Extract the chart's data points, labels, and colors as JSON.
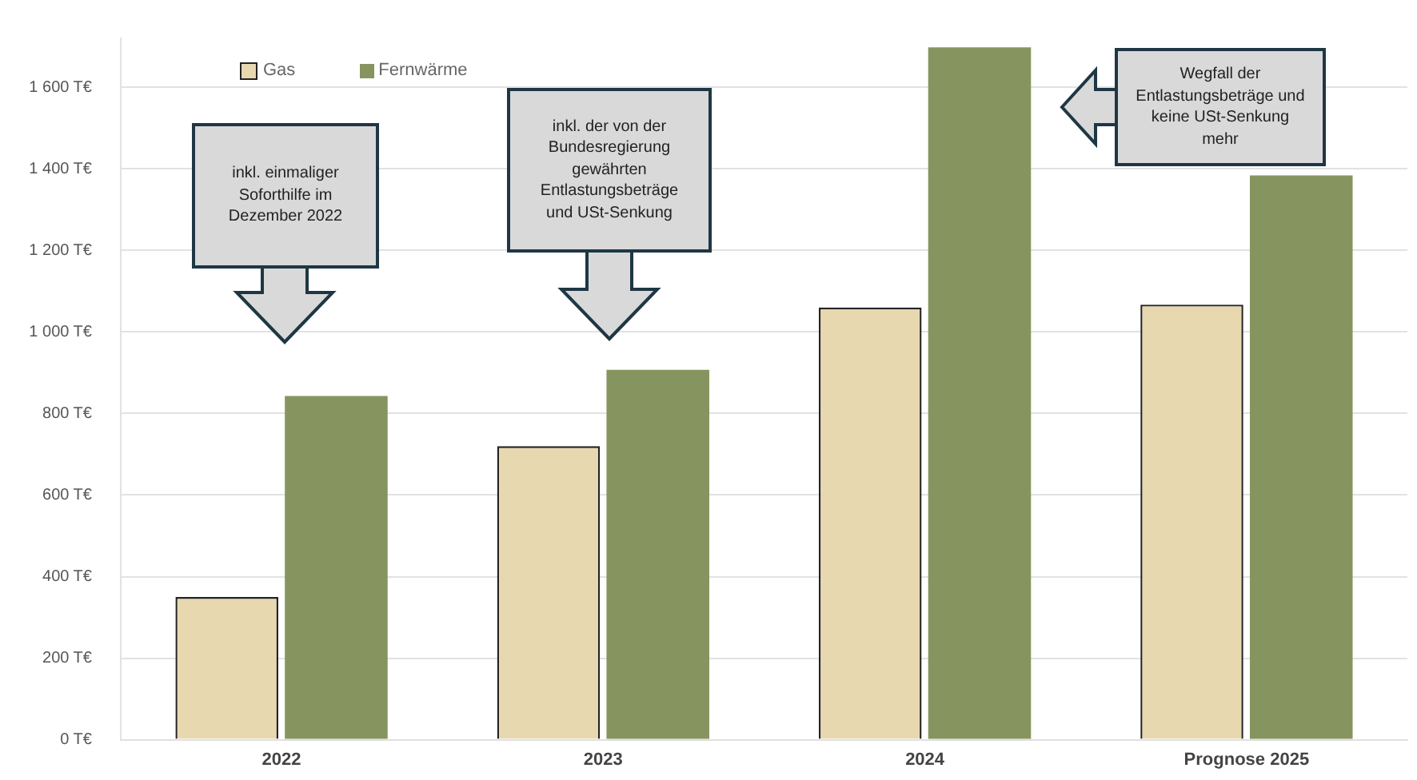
{
  "chart_data": {
    "type": "bar",
    "categories": [
      "2022",
      "2023",
      "2024",
      "Prognose 2025"
    ],
    "series": [
      {
        "name": "Gas",
        "color": "#e8d8b0",
        "values": [
          350,
          720,
          1060,
          1067
        ]
      },
      {
        "name": "Fernwärme",
        "color": "#86955f",
        "values": [
          843,
          907,
          1698,
          1384
        ]
      }
    ],
    "ylim": [
      0,
      1720
    ],
    "yticks": [
      {
        "value": 0,
        "label": "0 T€"
      },
      {
        "value": 200,
        "label": "200 T€"
      },
      {
        "value": 400,
        "label": "400 T€"
      },
      {
        "value": 600,
        "label": "600 T€"
      },
      {
        "value": 800,
        "label": "800 T€"
      },
      {
        "value": 1000,
        "label": "1 000 T€"
      },
      {
        "value": 1200,
        "label": "1 200 T€"
      },
      {
        "value": 1400,
        "label": "1 400 T€"
      },
      {
        "value": 1600,
        "label": "1 600 T€"
      }
    ],
    "grid": "y",
    "legend": "top left",
    "annotations": [
      "inkl. einmaliger Soforthilfe im Dezember 2022",
      "inkl. der von der Bundesregierung gewährten Entlastungsbeträge und USt-Senkung",
      "Wegfall der Entlastungsbeträge und keine USt-Senkung mehr"
    ]
  }
}
